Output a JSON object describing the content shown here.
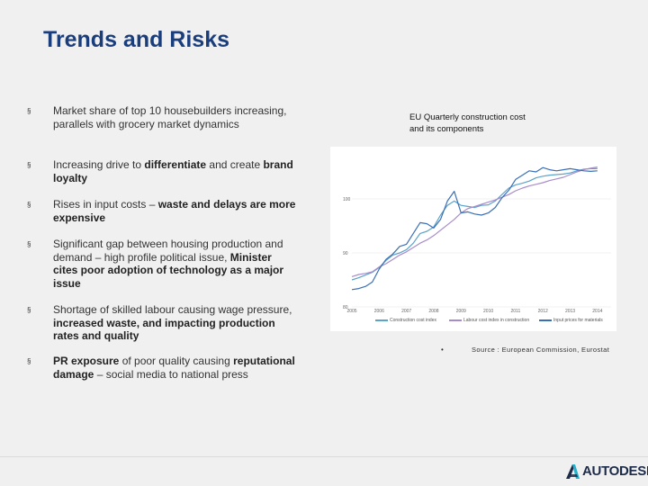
{
  "slide": {
    "title": "Trends and Risks"
  },
  "bullets": [
    {
      "mark": "§",
      "segments": [
        {
          "text": "Market share of top 10 housebuilders increasing, parallels with grocery market dynamics",
          "bold": false
        }
      ]
    },
    {
      "mark": "§",
      "segments": [
        {
          "text": "Increasing drive to ",
          "bold": false
        },
        {
          "text": "differentiate",
          "bold": true
        },
        {
          "text": " and create ",
          "bold": false
        },
        {
          "text": "brand loyalty",
          "bold": true
        }
      ]
    },
    {
      "mark": "§",
      "segments": [
        {
          "text": "Rises in input costs – ",
          "bold": false
        },
        {
          "text": "waste and delays are more expensive",
          "bold": true
        }
      ]
    },
    {
      "mark": "§",
      "segments": [
        {
          "text": "Significant gap between housing production and demand – high profile political issue, ",
          "bold": false
        },
        {
          "text": "Minister cites poor adoption of technology as a major issue",
          "bold": true
        }
      ]
    },
    {
      "mark": "§",
      "segments": [
        {
          "text": "Shortage of skilled labour causing wage pressure, ",
          "bold": false
        },
        {
          "text": "increased waste, and impacting production rates and quality",
          "bold": true
        }
      ]
    },
    {
      "mark": "§",
      "segments": [
        {
          "text": "PR exposure",
          "bold": true
        },
        {
          "text": " of poor quality causing ",
          "bold": false
        },
        {
          "text": "reputational damage",
          "bold": true
        },
        {
          "text": " – social media to national press",
          "bold": false
        }
      ]
    }
  ],
  "chart_caption": {
    "line1": "EU Quarterly construction cost",
    "line2": "and its components"
  },
  "source": {
    "bullet": "•",
    "text": "Source : European Commission, Eurostat"
  },
  "logo": {
    "text": "AUTODESK."
  },
  "colors": {
    "title": "#1a3d7c",
    "series_construction": "#5ba3c9",
    "series_labour": "#a78ccc",
    "series_input": "#3b6fb5"
  },
  "chart_data": {
    "type": "line",
    "title": "EU Quarterly construction cost and its components",
    "xlabel": "",
    "ylabel": "",
    "ylim": [
      80,
      108
    ],
    "yticks": [
      80,
      90,
      100
    ],
    "xlim": [
      2005,
      2014.5
    ],
    "xticks": [
      "2005",
      "2006",
      "2007",
      "2008",
      "2009",
      "2010",
      "2011",
      "2012",
      "2013",
      "2014"
    ],
    "series": [
      {
        "name": "Construction cost index",
        "color": "#5ba3c9",
        "x": [
          2005,
          2005.25,
          2005.5,
          2005.75,
          2006,
          2006.25,
          2006.5,
          2006.75,
          2007,
          2007.25,
          2007.5,
          2007.75,
          2008,
          2008.25,
          2008.5,
          2008.75,
          2009,
          2009.25,
          2009.5,
          2009.75,
          2010,
          2010.25,
          2010.5,
          2010.75,
          2011,
          2011.25,
          2011.5,
          2011.75,
          2012,
          2012.25,
          2012.5,
          2012.75,
          2013,
          2013.25,
          2013.5,
          2013.75,
          2014
        ],
        "values": [
          85.0,
          85.4,
          85.9,
          86.4,
          87.3,
          88.6,
          89.6,
          90.0,
          90.6,
          91.8,
          93.6,
          94.0,
          94.8,
          97.0,
          98.8,
          99.6,
          98.8,
          98.6,
          98.4,
          98.8,
          98.9,
          99.6,
          100.8,
          102.0,
          102.6,
          102.9,
          103.3,
          103.9,
          104.2,
          104.4,
          104.5,
          104.6,
          104.8,
          105.2,
          105.5,
          105.6,
          105.6
        ]
      },
      {
        "name": "Labour cost index in construction",
        "color": "#a78ccc",
        "x": [
          2005,
          2005.25,
          2005.5,
          2005.75,
          2006,
          2006.25,
          2006.5,
          2006.75,
          2007,
          2007.25,
          2007.5,
          2007.75,
          2008,
          2008.25,
          2008.5,
          2008.75,
          2009,
          2009.25,
          2009.5,
          2009.75,
          2010,
          2010.25,
          2010.5,
          2010.75,
          2011,
          2011.25,
          2011.5,
          2011.75,
          2012,
          2012.25,
          2012.5,
          2012.75,
          2013,
          2013.25,
          2013.5,
          2013.75,
          2014
        ],
        "values": [
          85.6,
          86.0,
          86.2,
          86.5,
          87.4,
          88.0,
          88.8,
          89.6,
          90.2,
          91.0,
          91.8,
          92.4,
          93.2,
          94.2,
          95.2,
          96.2,
          97.4,
          98.2,
          98.6,
          99.0,
          99.4,
          99.8,
          100.3,
          100.8,
          101.5,
          102.0,
          102.4,
          102.7,
          103.0,
          103.4,
          103.7,
          104.0,
          104.5,
          105.0,
          105.4,
          105.7,
          105.9
        ]
      },
      {
        "name": "Input prices for materials",
        "color": "#3b6fb5",
        "x": [
          2005,
          2005.25,
          2005.5,
          2005.75,
          2006,
          2006.25,
          2006.5,
          2006.75,
          2007,
          2007.25,
          2007.5,
          2007.75,
          2008,
          2008.25,
          2008.5,
          2008.75,
          2009,
          2009.25,
          2009.5,
          2009.75,
          2010,
          2010.25,
          2010.5,
          2010.75,
          2011,
          2011.25,
          2011.5,
          2011.75,
          2012,
          2012.25,
          2012.5,
          2012.75,
          2013,
          2013.25,
          2013.5,
          2013.75,
          2014
        ],
        "values": [
          83.2,
          83.4,
          83.8,
          84.6,
          87.0,
          88.8,
          89.8,
          91.2,
          91.6,
          93.6,
          95.6,
          95.4,
          94.6,
          96.2,
          99.6,
          101.4,
          97.4,
          97.6,
          97.2,
          97.0,
          97.4,
          98.4,
          100.2,
          101.6,
          103.6,
          104.4,
          105.2,
          105.0,
          105.8,
          105.4,
          105.2,
          105.4,
          105.6,
          105.4,
          105.2,
          105.1,
          105.2
        ]
      }
    ]
  }
}
